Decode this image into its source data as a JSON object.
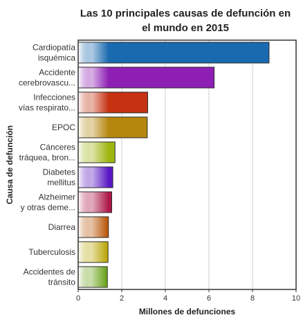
{
  "chart_data": {
    "type": "bar",
    "orientation": "horizontal",
    "title_lines": [
      "Las 10 principales causas de defunción en",
      "el mundo en 2015"
    ],
    "xlabel": "Millones de defunciones",
    "ylabel": "Causa de defunción",
    "xlim": [
      0,
      10
    ],
    "xticks": [
      0,
      2,
      4,
      6,
      8,
      10
    ],
    "grid": true,
    "legend": "none",
    "categories": [
      [
        "Cardiopatía",
        "isquémica"
      ],
      [
        "Accidente",
        "cerebrovascu..."
      ],
      [
        "Infecciones",
        "vías respirato..."
      ],
      [
        "EPOC"
      ],
      [
        "Cánceres",
        "tráquea, bron..."
      ],
      [
        "Diabetes",
        "mellitus"
      ],
      [
        "Alzheimer",
        "y otras deme..."
      ],
      [
        "Diarrea"
      ],
      [
        "Tuberculosis"
      ],
      [
        "Accidentes de",
        "tránsito"
      ]
    ],
    "values": [
      8.76,
      6.24,
      3.19,
      3.17,
      1.69,
      1.59,
      1.54,
      1.39,
      1.37,
      1.34
    ],
    "colors": [
      "#1a6aaf",
      "#8e1fb4",
      "#c43212",
      "#b5870d",
      "#9eb610",
      "#5a18c4",
      "#ad1848",
      "#bb5a0f",
      "#bca80c",
      "#6da51f"
    ]
  }
}
